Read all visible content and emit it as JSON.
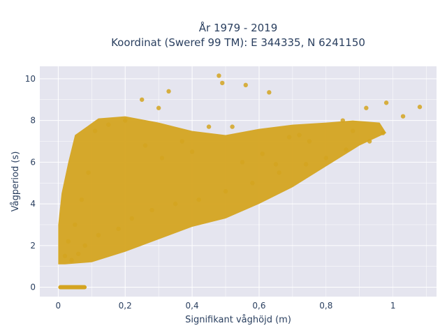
{
  "chart_data": {
    "type": "scatter",
    "title_line1": "År 1979 - 2019",
    "title_line2": "Koordinat (Sweref 99 TM): E 344335, N 6241150",
    "xlabel": "Signifikant våghöjd (m)",
    "ylabel": "Vågperiod (s)",
    "xlim": [
      -0.055,
      1.13
    ],
    "ylim": [
      -0.45,
      10.6
    ],
    "xticks": [
      0,
      0.2,
      0.4,
      0.6,
      0.8,
      1
    ],
    "xtick_labels": [
      "0",
      "0,2",
      "0,4",
      "0,6",
      "0,8",
      "1"
    ],
    "yticks": [
      0,
      2,
      4,
      6,
      8,
      10
    ],
    "ytick_labels": [
      "0",
      "2",
      "4",
      "6",
      "8",
      "10"
    ],
    "grid": true,
    "colors": {
      "marker": "#D4A420",
      "plot_bg": "#E5E5EF",
      "grid": "#ffffff",
      "text": "#2a3f5f"
    },
    "series": [
      {
        "x": [
          0.48,
          0.49,
          0.56,
          0.63,
          0.98,
          1.08,
          1.03,
          0.92,
          0.88,
          0.85,
          0.75,
          0.72,
          0.65,
          0.52,
          0.45,
          0.4,
          0.33,
          0.3,
          0.25,
          0.2,
          0.15,
          0.11,
          0.09,
          0.07,
          0.05,
          0.03,
          0.02,
          0.04,
          0.06,
          0.08,
          0.12,
          0.18,
          0.22,
          0.28,
          0.35,
          0.42,
          0.5,
          0.58,
          0.66,
          0.74,
          0.8,
          0.86,
          0.93,
          0.97,
          0.26,
          0.31,
          0.37,
          0.55,
          0.61,
          0.69
        ],
        "y": [
          10.15,
          9.8,
          9.7,
          9.35,
          8.85,
          8.65,
          8.2,
          8.6,
          7.5,
          8.0,
          7.0,
          7.3,
          5.9,
          7.7,
          7.7,
          6.5,
          9.4,
          8.6,
          9.0,
          8.0,
          7.8,
          7.5,
          5.5,
          4.2,
          3.0,
          2.2,
          1.5,
          1.3,
          1.6,
          2.0,
          2.5,
          2.8,
          3.3,
          3.7,
          4.0,
          4.2,
          4.6,
          5.0,
          5.5,
          5.9,
          6.2,
          6.6,
          7.0,
          7.4,
          6.8,
          6.2,
          7.0,
          6.0,
          6.4,
          7.2
        ]
      }
    ]
  }
}
